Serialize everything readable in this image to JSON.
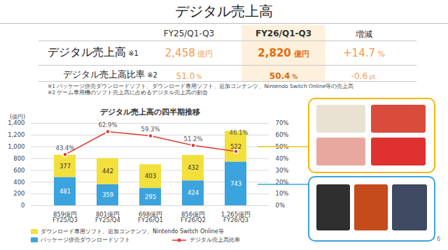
{
  "title": "デジタル売上高",
  "page_number": "6",
  "table": {
    "columns": [
      "FY25/Q1-Q3",
      "FY26/Q1-Q3",
      "増減"
    ],
    "rows": [
      {
        "label": "デジタル売上高",
        "note": "※1",
        "cells": [
          "2,458 億円",
          "2,820 億円",
          "+14.7 %"
        ]
      },
      {
        "label": "デジタル売上高比率",
        "note": "※2",
        "cells": [
          "51.0 %",
          "50.4 %",
          "-0.6 pt."
        ]
      }
    ]
  },
  "notes": [
    "※1 パッケージ併売ダウンロードソフト、ダウンロード専用ソフト、追加コンテンツ、Nintendo Switch Online等の売上高",
    "※2 ゲーム専用機のソフト売上高に占めるデジタル売上高の割合"
  ],
  "chart_data": {
    "type": "bar",
    "title": "デジタル売上高の四半期推移",
    "ylabel": "(億円)",
    "categories": [
      "FY25/Q3",
      "FY25/Q4",
      "FY26/Q1",
      "FY26/Q2",
      "FY26/Q3"
    ],
    "total_labels": [
      "859億円",
      "801億円",
      "698億円",
      "856億円",
      "1,265億円"
    ],
    "stacked": true,
    "data_labels": true,
    "grid": true,
    "ylim": [
      0,
      1400
    ],
    "yticks": [
      0,
      200,
      400,
      600,
      800,
      {
        "value": 1000,
        "label": "1,000"
      },
      {
        "value": 1200,
        "label": "1,200"
      },
      {
        "value": 1400,
        "label": "1,400"
      }
    ],
    "y2lim": [
      0,
      70
    ],
    "y2ticks": [
      {
        "value": 0,
        "label": "0%"
      },
      {
        "value": 10,
        "label": "10%"
      },
      {
        "value": 20,
        "label": "20%"
      },
      {
        "value": 30,
        "label": "30%"
      },
      {
        "value": 40,
        "label": "40%"
      },
      {
        "value": 50,
        "label": "50%"
      },
      {
        "value": 60,
        "label": "60%"
      },
      {
        "value": 70,
        "label": "70%"
      }
    ],
    "series": [
      {
        "name": "パッケージ併売ダウンロードソフト",
        "type": "bar",
        "color": "#3ba3dd",
        "values": [
          481,
          359,
          295,
          424,
          743
        ]
      },
      {
        "name": "ダウンロード専用ソフト、追加コンテンツ、Nintendo Switch Online等",
        "type": "bar",
        "color": "#f3e03c",
        "values": [
          377,
          442,
          403,
          432,
          522
        ]
      },
      {
        "name": "デジタル売上高比率",
        "type": "line",
        "axis": "y2",
        "color": "#e0392f",
        "marker": "circle",
        "values": [
          43.4,
          62.9,
          59.3,
          51.2,
          46.1
        ],
        "value_labels": [
          "43.4%",
          "62.9%",
          "59.3%",
          "51.2%",
          "46.1%"
        ]
      }
    ]
  }
}
